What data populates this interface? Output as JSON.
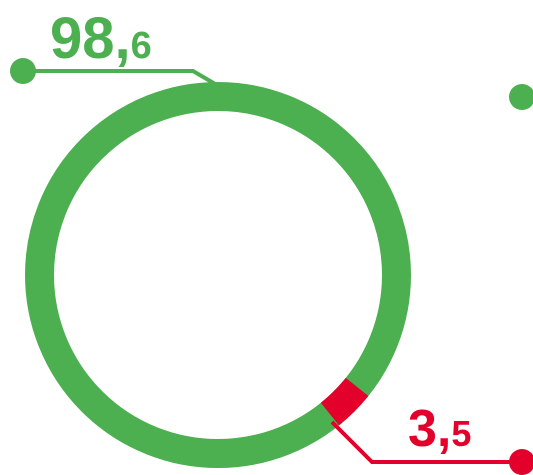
{
  "chart_data": {
    "type": "pie",
    "style": "donut",
    "slices": [
      {
        "value_label": "98,6",
        "value": 98.6,
        "color": "#4caf50"
      },
      {
        "value_label": "3,5",
        "value": 3.5,
        "color": "#e3002a"
      }
    ],
    "title": "",
    "legend": "none"
  },
  "labels": {
    "green_int": "98,",
    "green_dec": "6",
    "red_int": "3,",
    "red_dec": "5"
  },
  "colors": {
    "green": "#4caf50",
    "red": "#e3002a"
  }
}
